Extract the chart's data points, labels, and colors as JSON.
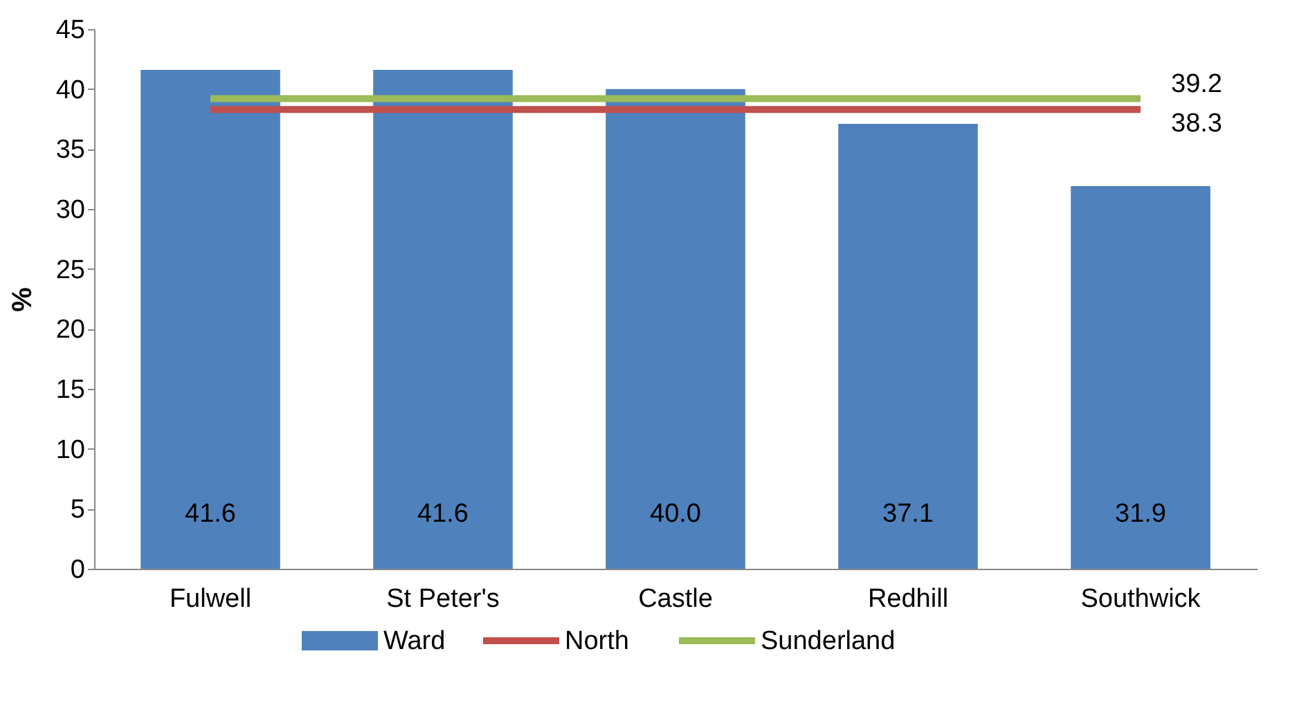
{
  "chart_data": {
    "type": "bar",
    "ylabel": "%",
    "categories": [
      "Fulwell",
      "St Peter's",
      "Castle",
      "Redhill",
      "Southwick"
    ],
    "series": [
      {
        "name": "Ward",
        "color": "#4f81bd",
        "values": [
          41.6,
          41.6,
          40.0,
          37.1,
          31.9
        ],
        "value_labels": [
          "41.6",
          "41.6",
          "40.0",
          "37.1",
          "31.9"
        ]
      },
      {
        "name": "North",
        "type": "line",
        "color": "#c0504d",
        "values": [
          38.3,
          38.3,
          38.3,
          38.3,
          38.3
        ],
        "value_labels": [
          null,
          null,
          null,
          null,
          "38.3"
        ]
      },
      {
        "name": "Sunderland",
        "type": "line",
        "color": "#9bbb59",
        "values": [
          39.2,
          39.2,
          39.2,
          39.2,
          39.2
        ],
        "value_labels": [
          null,
          null,
          null,
          null,
          "39.2"
        ]
      }
    ],
    "ylim": [
      0,
      45
    ],
    "yticks": [
      0,
      5,
      10,
      15,
      20,
      25,
      30,
      35,
      40,
      45
    ],
    "grid": false,
    "legend": "bottom",
    "marker": "none"
  }
}
